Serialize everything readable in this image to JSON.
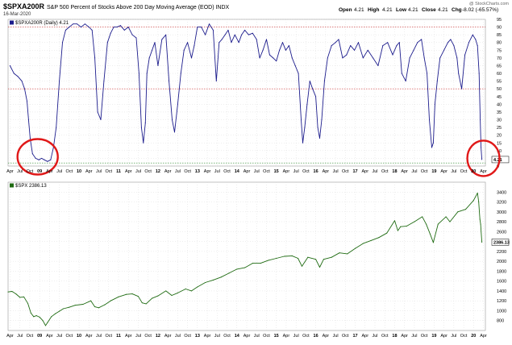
{
  "header": {
    "symbol": "$SPXA200R",
    "description": "S&P 500 Percent of Stocks Above 200 Day Moving Average (EOD) INDX",
    "date": "16-Mar-2020",
    "watermark": "@ StockCharts.com",
    "quote": {
      "open_label": "Open",
      "open": "4.21",
      "high_label": "High",
      "high": "4.21",
      "low_label": "Low",
      "low": "4.21",
      "close_label": "Close",
      "close": "4.21",
      "chg_label": "Chg",
      "chg": "-8.02 (-65.57%)"
    }
  },
  "colors": {
    "top_line": "#1c1c8c",
    "bottom_line": "#1f6b12",
    "ref_line_red": "#cc3333",
    "ref_line_green": "#2e8b2e",
    "circle": "#e01818",
    "grid": "#d4d4d4"
  },
  "x_ticks": [
    "Apr",
    "Jul",
    "Oct",
    "09",
    "Apr",
    "Jul",
    "Oct",
    "10",
    "Apr",
    "Jul",
    "Oct",
    "11",
    "Apr",
    "Jul",
    "Oct",
    "12",
    "Apr",
    "Jul",
    "Oct",
    "13",
    "Apr",
    "Jul",
    "Oct",
    "14",
    "Apr",
    "Jul",
    "Oct",
    "15",
    "Apr",
    "Jul",
    "Oct",
    "16",
    "Apr",
    "Jul",
    "Oct",
    "17",
    "Apr",
    "Jul",
    "Oct",
    "18",
    "Apr",
    "Jul",
    "Oct",
    "19",
    "Apr",
    "Jul",
    "Oct",
    "20",
    "Apr"
  ],
  "chart_data": [
    {
      "type": "line",
      "title": "$SPXA200R",
      "series": [
        {
          "name": "$SPXA200R (Daily) 4.21",
          "last_value_label": "4.21",
          "x": [
            2008.25,
            2008.35,
            2008.45,
            2008.55,
            2008.62,
            2008.68,
            2008.72,
            2008.76,
            2008.82,
            2008.9,
            2008.98,
            2009.05,
            2009.12,
            2009.2,
            2009.28,
            2009.35,
            2009.42,
            2009.5,
            2009.58,
            2009.66,
            2009.75,
            2009.85,
            2009.95,
            2010.05,
            2010.15,
            2010.25,
            2010.33,
            2010.4,
            2010.47,
            2010.55,
            2010.63,
            2010.72,
            2010.8,
            2010.88,
            2010.96,
            2011.05,
            2011.15,
            2011.25,
            2011.35,
            2011.45,
            2011.52,
            2011.58,
            2011.63,
            2011.68,
            2011.72,
            2011.78,
            2011.85,
            2011.92,
            2012.0,
            2012.1,
            2012.2,
            2012.28,
            2012.36,
            2012.42,
            2012.5,
            2012.58,
            2012.66,
            2012.75,
            2012.85,
            2012.92,
            2013.0,
            2013.1,
            2013.2,
            2013.3,
            2013.4,
            2013.48,
            2013.55,
            2013.62,
            2013.7,
            2013.78,
            2013.86,
            2013.95,
            2014.05,
            2014.12,
            2014.2,
            2014.3,
            2014.4,
            2014.5,
            2014.58,
            2014.66,
            2014.75,
            2014.83,
            2014.92,
            2015.0,
            2015.08,
            2015.16,
            2015.24,
            2015.32,
            2015.4,
            2015.48,
            2015.56,
            2015.63,
            2015.67,
            2015.72,
            2015.78,
            2015.85,
            2015.92,
            2016.0,
            2016.05,
            2016.1,
            2016.15,
            2016.22,
            2016.3,
            2016.4,
            2016.5,
            2016.58,
            2016.68,
            2016.78,
            2016.88,
            2016.98,
            2017.08,
            2017.2,
            2017.32,
            2017.45,
            2017.58,
            2017.7,
            2017.82,
            2017.95,
            2018.05,
            2018.12,
            2018.18,
            2018.28,
            2018.38,
            2018.48,
            2018.58,
            2018.68,
            2018.75,
            2018.82,
            2018.88,
            2018.94,
            2018.98,
            2019.02,
            2019.08,
            2019.15,
            2019.25,
            2019.35,
            2019.42,
            2019.5,
            2019.58,
            2019.62,
            2019.7,
            2019.78,
            2019.88,
            2019.98,
            2020.05,
            2020.1,
            2020.14,
            2020.17,
            2020.19,
            2020.21
          ],
          "y": [
            65,
            60,
            58,
            55,
            50,
            42,
            30,
            18,
            8,
            5,
            4,
            5,
            4,
            3,
            4,
            12,
            25,
            55,
            80,
            88,
            90,
            92,
            92,
            90,
            92,
            90,
            88,
            70,
            35,
            30,
            55,
            80,
            86,
            90,
            90,
            91,
            88,
            90,
            85,
            83,
            60,
            25,
            15,
            28,
            60,
            70,
            75,
            80,
            65,
            82,
            85,
            55,
            30,
            22,
            40,
            60,
            75,
            80,
            70,
            78,
            90,
            90,
            85,
            92,
            88,
            55,
            80,
            82,
            85,
            88,
            80,
            85,
            80,
            85,
            88,
            85,
            86,
            82,
            70,
            75,
            82,
            72,
            70,
            68,
            75,
            80,
            75,
            78,
            70,
            65,
            60,
            30,
            15,
            25,
            40,
            55,
            50,
            45,
            25,
            18,
            30,
            55,
            70,
            78,
            80,
            82,
            70,
            72,
            78,
            75,
            80,
            70,
            75,
            70,
            65,
            78,
            80,
            72,
            78,
            80,
            60,
            55,
            70,
            75,
            80,
            82,
            70,
            60,
            30,
            12,
            15,
            40,
            55,
            70,
            75,
            80,
            82,
            78,
            70,
            60,
            50,
            72,
            80,
            85,
            82,
            78,
            60,
            30,
            12,
            4.21
          ],
          "reference_lines": [
            90,
            50,
            2
          ]
        }
      ],
      "ylim": [
        0,
        95
      ],
      "y_ticks": [
        0,
        5,
        10,
        15,
        20,
        25,
        30,
        35,
        40,
        45,
        50,
        55,
        60,
        65,
        70,
        75,
        80,
        85,
        90,
        95
      ],
      "xlim": [
        2008.2,
        2020.3
      ],
      "annotations": [
        "circle around 2009 low",
        "circle around March 2020 low"
      ]
    },
    {
      "type": "line",
      "title": "$SPX",
      "series": [
        {
          "name": "$SPX 2386.13",
          "last_value_label": "2386.13",
          "x": [
            2008.2,
            2008.3,
            2008.4,
            2008.5,
            2008.6,
            2008.7,
            2008.78,
            2008.85,
            2008.92,
            2009.0,
            2009.08,
            2009.15,
            2009.2,
            2009.3,
            2009.4,
            2009.5,
            2009.6,
            2009.75,
            2009.9,
            2010.1,
            2010.3,
            2010.4,
            2010.5,
            2010.65,
            2010.8,
            2011.0,
            2011.2,
            2011.35,
            2011.5,
            2011.6,
            2011.7,
            2011.85,
            2012.0,
            2012.2,
            2012.35,
            2012.5,
            2012.7,
            2012.85,
            2013.0,
            2013.2,
            2013.4,
            2013.6,
            2013.8,
            2014.0,
            2014.2,
            2014.4,
            2014.6,
            2014.8,
            2015.0,
            2015.2,
            2015.4,
            2015.55,
            2015.65,
            2015.8,
            2016.0,
            2016.1,
            2016.2,
            2016.4,
            2016.6,
            2016.8,
            2017.0,
            2017.2,
            2017.4,
            2017.6,
            2017.8,
            2018.0,
            2018.08,
            2018.15,
            2018.3,
            2018.5,
            2018.7,
            2018.8,
            2018.9,
            2018.98,
            2019.1,
            2019.3,
            2019.4,
            2019.6,
            2019.8,
            2020.0,
            2020.1,
            2020.13,
            2020.16,
            2020.18,
            2020.21
          ],
          "y": [
            1380,
            1390,
            1340,
            1270,
            1280,
            1150,
            950,
            880,
            900,
            870,
            800,
            700,
            760,
            880,
            940,
            990,
            1040,
            1070,
            1110,
            1130,
            1200,
            1080,
            1060,
            1120,
            1200,
            1280,
            1330,
            1340,
            1290,
            1160,
            1140,
            1250,
            1300,
            1400,
            1310,
            1360,
            1440,
            1400,
            1480,
            1570,
            1620,
            1680,
            1760,
            1840,
            1870,
            1960,
            1960,
            2020,
            2060,
            2100,
            2110,
            2060,
            1900,
            2080,
            2040,
            1880,
            2040,
            2080,
            2170,
            2150,
            2260,
            2360,
            2420,
            2480,
            2570,
            2820,
            2620,
            2700,
            2710,
            2800,
            2900,
            2750,
            2550,
            2380,
            2750,
            2900,
            2800,
            3000,
            3050,
            3230,
            3380,
            3200,
            2850,
            2750,
            2386.13
          ]
        }
      ],
      "ylim": [
        600,
        3600
      ],
      "y_ticks": [
        800,
        1000,
        1200,
        1400,
        1600,
        1800,
        2000,
        2200,
        2400,
        2600,
        2800,
        3000,
        3200,
        3400
      ],
      "xlim": [
        2008.2,
        2020.3
      ]
    }
  ]
}
